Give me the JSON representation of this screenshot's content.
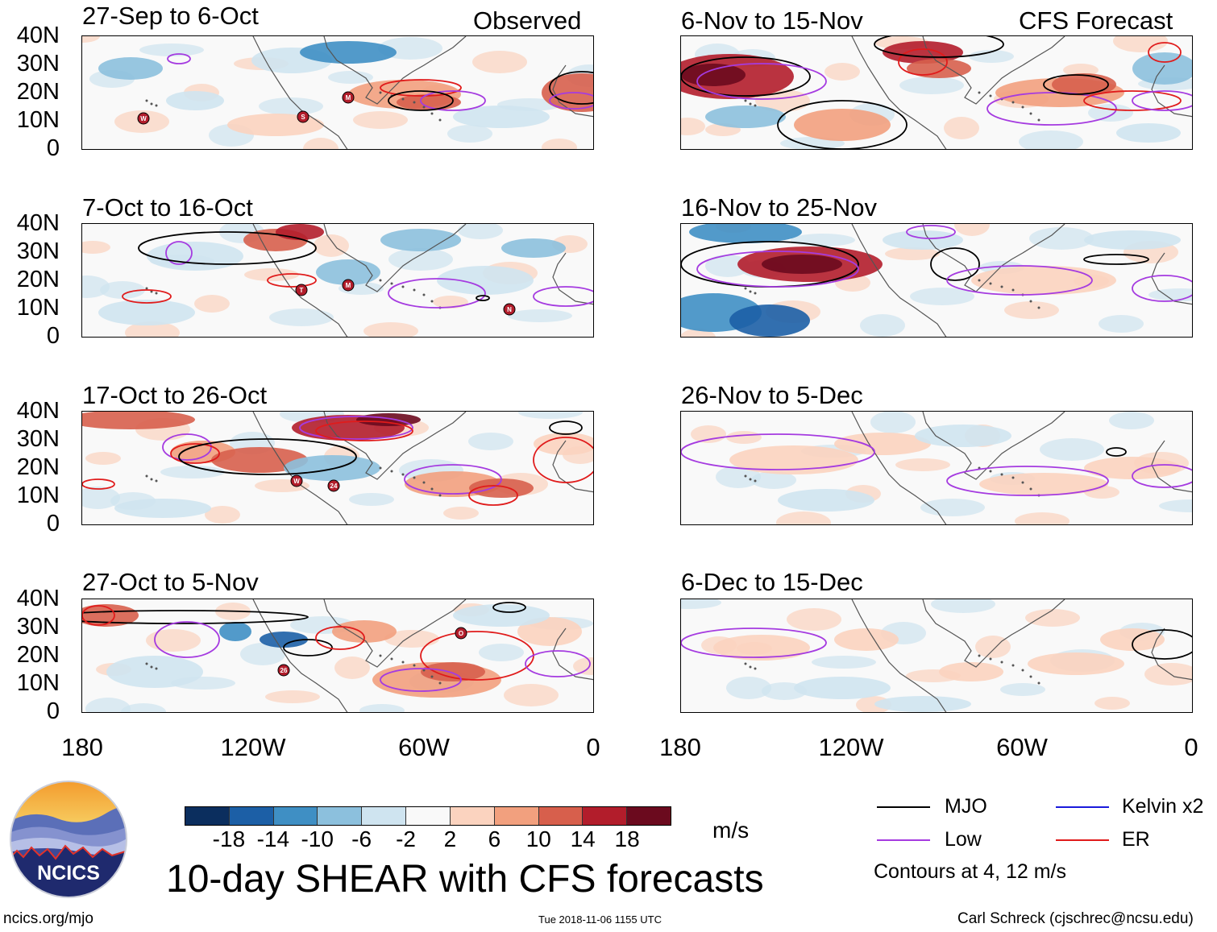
{
  "main_title": "10-day SHEAR with CFS forecasts",
  "site_url": "ncics.org/mjo",
  "timestamp": "Tue 2018-11-06 1155 UTC",
  "author": "Carl Schreck (cjschrec@ncsu.edu)",
  "logo_text": "NCICS",
  "units": "m/s",
  "observed_label": "Observed",
  "forecast_label": "CFS Forecast",
  "y_ticks": [
    "40N",
    "30N",
    "20N",
    "10N",
    "0"
  ],
  "x_ticks": [
    "180",
    "120W",
    "60W",
    "0"
  ],
  "panels": [
    {
      "period": "27-Sep to 6-Oct",
      "storms": [
        "W",
        "S",
        "M"
      ]
    },
    {
      "period": "7-Oct to 16-Oct",
      "storms": [
        "T",
        "M",
        "N"
      ]
    },
    {
      "period": "17-Oct to 26-Oct",
      "storms": [
        "W",
        "24"
      ]
    },
    {
      "period": "27-Oct to 5-Nov",
      "storms": [
        "26",
        "O"
      ]
    },
    {
      "period": "6-Nov to 15-Nov",
      "storms": []
    },
    {
      "period": "16-Nov to 25-Nov",
      "storms": []
    },
    {
      "period": "26-Nov to 5-Dec",
      "storms": []
    },
    {
      "period": "6-Dec to 15-Dec",
      "storms": []
    }
  ],
  "colorbar": {
    "ticks": [
      "-18",
      "-14",
      "-10",
      "-6",
      "-2",
      "2",
      "6",
      "10",
      "14",
      "18"
    ],
    "colors": [
      "#0b2e5e",
      "#1c5fa6",
      "#3f8fc4",
      "#8cc0dd",
      "#cfe4f0",
      "#f9f9f9",
      "#fbd3bf",
      "#f2a07e",
      "#d75f4c",
      "#b21d2b",
      "#6b0a1e"
    ]
  },
  "legend": {
    "items": [
      {
        "label": "MJO",
        "color": "#000000"
      },
      {
        "label": "Kelvin x2",
        "color": "#1a1adb"
      },
      {
        "label": "Low",
        "color": "#a53be0"
      },
      {
        "label": "ER",
        "color": "#e01b1b"
      }
    ],
    "note": "Contours at 4, 12 m/s"
  }
}
